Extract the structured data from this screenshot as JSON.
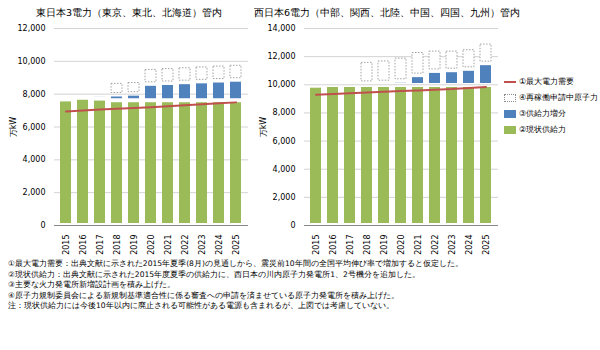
{
  "chart_data": [
    {
      "type": "bar",
      "stacked": true,
      "grid": true,
      "title": "東日本3電力（東京、東北、北海道）管内",
      "y_label": "万kW",
      "categories": [
        "2015",
        "2016",
        "2017",
        "2018",
        "2019",
        "2020",
        "2021",
        "2022",
        "2023",
        "2024",
        "2025"
      ],
      "ylim": [
        0,
        12000
      ],
      "yticks": [
        0,
        {
          "value": 2000,
          "label": "2,000"
        },
        {
          "value": 4000,
          "label": "4,000"
        },
        {
          "value": 6000,
          "label": "6,000"
        },
        {
          "value": 8000,
          "label": "8,000"
        },
        {
          "value": 10000,
          "label": "10,000"
        },
        {
          "value": 12000,
          "label": "12,000"
        }
      ],
      "series": [
        {
          "name": "②現状供給力",
          "type": "bar",
          "color": "#9bbb59",
          "values": [
            7650,
            7750,
            7700,
            7600,
            7600,
            7600,
            7600,
            7600,
            7600,
            7600,
            7600
          ]
        },
        {
          "name": "③供給力増分",
          "type": "bar",
          "color": "#4f81bd",
          "values": [
            0,
            0,
            250,
            350,
            400,
            1000,
            1050,
            1100,
            1150,
            1200,
            1250
          ]
        },
        {
          "name": "④再稼働申請中原子力",
          "type": "bar",
          "color": "#ffffff",
          "line_style": "dotted",
          "values": [
            0,
            0,
            0,
            800,
            800,
            1000,
            1000,
            1000,
            1000,
            1000,
            1000
          ]
        },
        {
          "name": "①最大電力需要",
          "type": "line",
          "color": "#c0504d",
          "values": [
            6950,
            7000,
            7060,
            7110,
            7160,
            7210,
            7270,
            7330,
            7390,
            7440,
            7500
          ]
        }
      ]
    },
    {
      "type": "bar",
      "stacked": true,
      "grid": true,
      "legend": "right",
      "title": "西日本6電力（中部、関西、北陸、中国、四国、九州）管内",
      "y_label": "万kW",
      "categories": [
        "2015",
        "2016",
        "2017",
        "2018",
        "2019",
        "2020",
        "2021",
        "2022",
        "2023",
        "2024",
        "2025"
      ],
      "ylim": [
        0,
        14000
      ],
      "yticks": [
        0,
        {
          "value": 2000,
          "label": "2,000"
        },
        {
          "value": 4000,
          "label": "4,000"
        },
        {
          "value": 6000,
          "label": "6,000"
        },
        {
          "value": 8000,
          "label": "8,000"
        },
        {
          "value": 10000,
          "label": "10,000"
        },
        {
          "value": 12000,
          "label": "12,000"
        },
        {
          "value": 14000,
          "label": "14,000"
        }
      ],
      "series": [
        {
          "name": "②現状供給力",
          "type": "bar",
          "color": "#9bbb59",
          "values": [
            9900,
            9950,
            9950,
            9950,
            9950,
            9950,
            9950,
            9950,
            9950,
            9950,
            9950
          ]
        },
        {
          "name": "③供給力増分",
          "type": "bar",
          "color": "#4f81bd",
          "values": [
            0,
            0,
            50,
            150,
            200,
            300,
            700,
            1000,
            1050,
            1150,
            1550
          ]
        },
        {
          "name": "④再稼働申請中原子力",
          "type": "bar",
          "color": "#ffffff",
          "line_style": "dotted",
          "values": [
            0,
            0,
            0,
            1600,
            1650,
            1750,
            1750,
            1550,
            1500,
            1500,
            1500
          ]
        },
        {
          "name": "①最大電力需要",
          "type": "line",
          "color": "#c0504d",
          "values": [
            9300,
            9350,
            9400,
            9450,
            9500,
            9550,
            9600,
            9650,
            9700,
            9780,
            9850
          ]
        }
      ]
    }
  ],
  "notes": [
    "①最大電力需要：出典文献に示された2015年夏季(8月)の見通しから、震災前10年間の全国平均伸び率で増加すると仮定した。",
    "②現状供給力：出典文献に示された2015年度夏季の供給力に、西日本の川内原子力発電所1、2号機分を追加した。",
    "③主要な火力発電所新増設計画を積み上げた。",
    "④原子力規制委員会による新規制基準適合性に係る審査への申請を済ませている原子力発電所を積み上げた。",
    "注：現状供給力には今後10年以内に廃止される可能性がある電源も含まれるが、上図では考慮していない。"
  ]
}
